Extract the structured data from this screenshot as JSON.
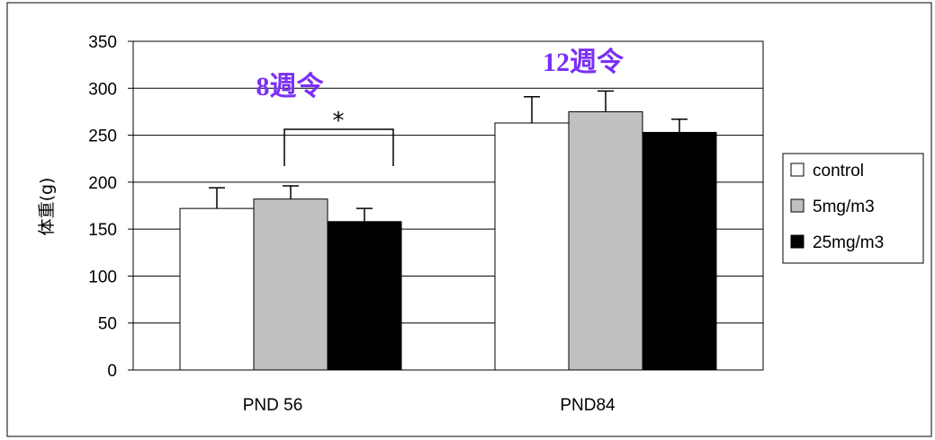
{
  "chart_data": {
    "type": "bar",
    "categories": [
      "PND 56",
      "PND84"
    ],
    "series": [
      {
        "name": "control",
        "values": [
          172,
          263
        ],
        "errors": [
          22,
          28
        ],
        "color": "#ffffff"
      },
      {
        "name": "5mg/m3",
        "values": [
          182,
          275
        ],
        "errors": [
          14,
          22
        ],
        "color": "#c0c0c0"
      },
      {
        "name": "25mg/m3",
        "values": [
          158,
          253
        ],
        "errors": [
          14,
          14
        ],
        "color": "#000000"
      }
    ],
    "ylabel": "体重(g)",
    "ylim": [
      0,
      350
    ],
    "yticks": [
      0,
      50,
      100,
      150,
      200,
      250,
      300,
      350
    ],
    "grid": true,
    "legend": "right",
    "annotations": {
      "group1": "8週令",
      "group2": "12週令",
      "significance": "*"
    },
    "annotation_color": "#7b2ff7"
  }
}
